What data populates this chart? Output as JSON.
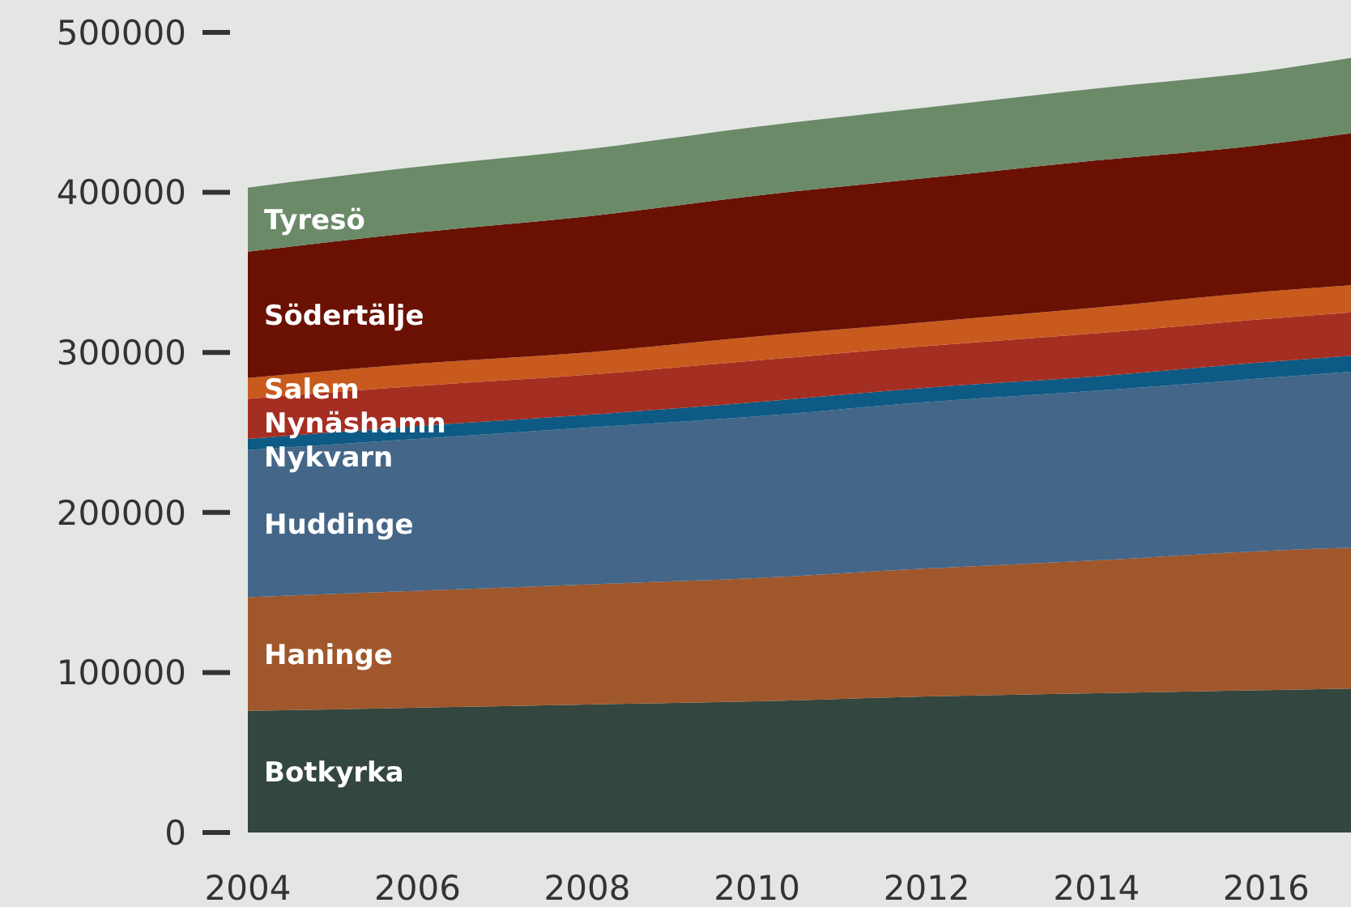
{
  "chart_data": {
    "type": "area",
    "stacked": true,
    "x": [
      2004,
      2006,
      2008,
      2010,
      2012,
      2014,
      2016,
      2017
    ],
    "xlim": [
      2004,
      2017
    ],
    "xticks": [
      2004,
      2006,
      2008,
      2010,
      2012,
      2014,
      2016
    ],
    "ylim": [
      0,
      500000
    ],
    "yticks": [
      0,
      100000,
      200000,
      300000,
      400000,
      500000
    ],
    "grid": false,
    "series": [
      {
        "name": "Botkyrka",
        "color": "#33463f",
        "values": [
          76000,
          78000,
          80000,
          82000,
          85000,
          87000,
          89000,
          90000
        ]
      },
      {
        "name": "Haninge",
        "color": "#a0572c",
        "values": [
          71000,
          73000,
          75000,
          77000,
          80000,
          83000,
          87000,
          88000
        ]
      },
      {
        "name": "Huddinge",
        "color": "#446688",
        "values": [
          92000,
          95000,
          98000,
          101000,
          104000,
          106000,
          108000,
          110000
        ]
      },
      {
        "name": "Nykvarn",
        "color": "#0d5a85",
        "values": [
          7000,
          8000,
          8000,
          9000,
          9000,
          9000,
          10000,
          10000
        ]
      },
      {
        "name": "Nynäshamn",
        "color": "#a52e22",
        "values": [
          25000,
          25000,
          25000,
          26000,
          26000,
          27000,
          27000,
          27000
        ]
      },
      {
        "name": "Salem",
        "color": "#c95a1d",
        "values": [
          13000,
          14000,
          14000,
          15000,
          15000,
          16000,
          17000,
          17000
        ]
      },
      {
        "name": "Södertälje",
        "color": "#6a1103",
        "values": [
          79000,
          82000,
          85000,
          88000,
          90000,
          92000,
          92000,
          95000
        ]
      },
      {
        "name": "Tyresö",
        "color": "#6b8a68",
        "values": [
          40000,
          41000,
          42000,
          43000,
          44000,
          45000,
          46000,
          47000
        ]
      }
    ]
  }
}
